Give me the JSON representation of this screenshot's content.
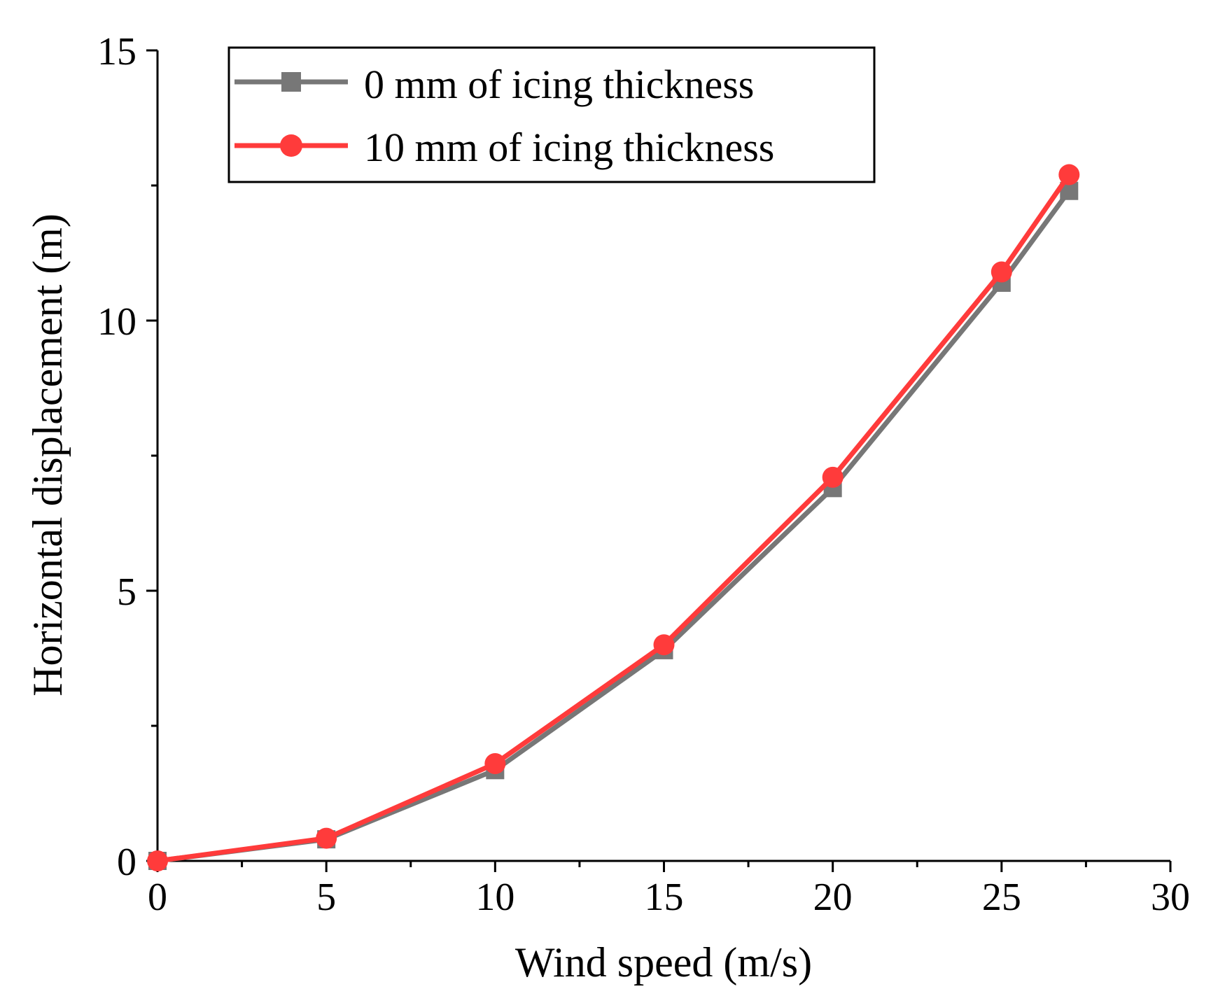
{
  "chart_data": {
    "type": "line",
    "title": "",
    "xlabel": "Wind speed (m/s)",
    "ylabel": "Horizontal displacement (m)",
    "xlim": [
      0,
      30
    ],
    "ylim": [
      0,
      15
    ],
    "x_ticks": [
      0,
      5,
      10,
      15,
      20,
      25,
      30
    ],
    "y_ticks": [
      0,
      5,
      10,
      15
    ],
    "x_tick_labels": [
      "0",
      "5",
      "10",
      "15",
      "20",
      "25",
      "30"
    ],
    "y_tick_labels": [
      "0",
      "5",
      "10",
      "15"
    ],
    "x_minor_step": 2.5,
    "y_minor_step": 2.5,
    "grid": false,
    "legend_position": "top-left",
    "series": [
      {
        "name": "0 mm of icing thickness",
        "marker": "square",
        "color": "#777777",
        "x": [
          0,
          5,
          10,
          15,
          20,
          25,
          27
        ],
        "y": [
          0.0,
          0.4,
          1.68,
          3.9,
          6.9,
          10.7,
          12.4
        ]
      },
      {
        "name": "10 mm of icing thickness",
        "marker": "circle",
        "color": "#ff3b3b",
        "x": [
          0,
          5,
          10,
          15,
          20,
          25,
          27
        ],
        "y": [
          0.0,
          0.42,
          1.8,
          4.0,
          7.1,
          10.9,
          12.7
        ]
      }
    ]
  }
}
